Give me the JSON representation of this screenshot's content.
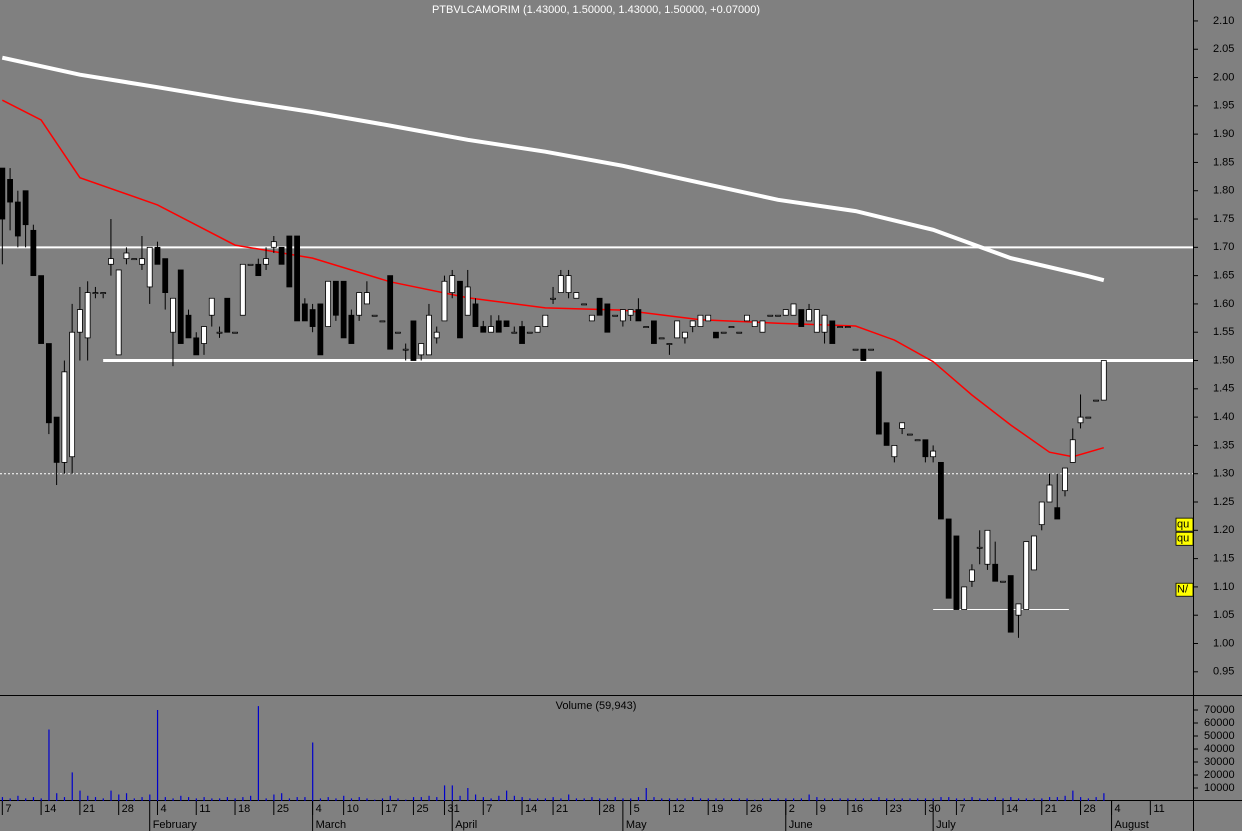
{
  "chart_data": [
    {
      "type": "candlestick",
      "title": "PTBVLCAMORIM (1.43000, 1.50000, 1.43000, 1.50000, +0.07000)",
      "up_color": "#ffffff",
      "down_color": "#000000",
      "open": [
        1.84,
        1.82,
        1.78,
        1.8,
        1.73,
        1.65,
        1.53,
        1.4,
        1.32,
        1.33,
        1.55,
        1.54,
        1.62,
        1.62,
        1.67,
        1.51,
        1.68,
        1.68,
        1.67,
        1.63,
        1.7,
        1.68,
        1.55,
        1.66,
        1.58,
        1.54,
        1.53,
        1.58,
        1.55,
        1.61,
        1.55,
        1.58,
        1.67,
        1.67,
        1.67,
        1.7,
        1.7,
        1.72,
        1.72,
        1.6,
        1.59,
        1.6,
        1.56,
        1.64,
        1.64,
        1.58,
        1.58,
        1.6,
        1.58,
        1.57,
        1.65,
        1.55,
        1.52,
        1.57,
        1.51,
        1.51,
        1.54,
        1.57,
        1.62,
        1.64,
        1.58,
        1.6,
        1.56,
        1.55,
        1.57,
        1.57,
        1.55,
        1.56,
        1.55,
        1.55,
        1.56,
        1.61,
        1.62,
        1.62,
        1.61,
        1.6,
        1.57,
        1.61,
        1.6,
        1.58,
        1.57,
        1.58,
        1.59,
        1.56,
        1.57,
        1.54,
        1.53,
        1.54,
        1.54,
        1.56,
        1.56,
        1.57,
        1.55,
        1.55,
        1.56,
        1.55,
        1.57,
        1.56,
        1.55,
        1.58,
        1.58,
        1.58,
        1.58,
        1.59,
        1.57,
        1.55,
        1.55,
        1.57,
        1.56,
        1.56,
        1.52,
        1.52,
        1.52,
        1.48,
        1.39,
        1.33,
        1.38,
        1.37,
        1.36,
        1.36,
        1.33,
        1.32,
        1.22,
        1.19,
        1.06,
        1.11,
        1.17,
        1.14,
        1.14,
        1.11,
        1.12,
        1.05,
        1.06,
        1.13,
        1.21,
        1.25,
        1.24,
        1.27,
        1.32,
        1.39,
        1.4,
        1.43,
        1.43
      ],
      "high": [
        1.84,
        1.84,
        1.8,
        1.8,
        1.74,
        1.65,
        1.53,
        1.4,
        1.5,
        1.6,
        1.63,
        1.64,
        1.63,
        1.62,
        1.75,
        1.66,
        1.7,
        1.68,
        1.72,
        1.7,
        1.71,
        1.68,
        1.61,
        1.66,
        1.59,
        1.55,
        1.56,
        1.61,
        1.56,
        1.61,
        1.55,
        1.67,
        1.67,
        1.68,
        1.7,
        1.72,
        1.7,
        1.72,
        1.72,
        1.61,
        1.6,
        1.6,
        1.64,
        1.64,
        1.64,
        1.59,
        1.62,
        1.64,
        1.58,
        1.57,
        1.65,
        1.55,
        1.53,
        1.57,
        1.53,
        1.6,
        1.56,
        1.65,
        1.66,
        1.64,
        1.66,
        1.61,
        1.57,
        1.58,
        1.58,
        1.57,
        1.56,
        1.57,
        1.55,
        1.56,
        1.58,
        1.63,
        1.66,
        1.66,
        1.62,
        1.6,
        1.58,
        1.61,
        1.6,
        1.58,
        1.59,
        1.59,
        1.61,
        1.56,
        1.57,
        1.54,
        1.53,
        1.57,
        1.55,
        1.57,
        1.58,
        1.58,
        1.55,
        1.55,
        1.56,
        1.55,
        1.58,
        1.57,
        1.57,
        1.58,
        1.58,
        1.59,
        1.6,
        1.59,
        1.6,
        1.59,
        1.58,
        1.57,
        1.56,
        1.56,
        1.52,
        1.52,
        1.52,
        1.48,
        1.39,
        1.35,
        1.39,
        1.37,
        1.36,
        1.36,
        1.35,
        1.32,
        1.22,
        1.19,
        1.1,
        1.14,
        1.2,
        1.2,
        1.18,
        1.11,
        1.12,
        1.07,
        1.18,
        1.19,
        1.25,
        1.3,
        1.3,
        1.31,
        1.38,
        1.44,
        1.4,
        1.43,
        1.5
      ],
      "low": [
        1.67,
        1.73,
        1.7,
        1.7,
        1.65,
        1.53,
        1.37,
        1.28,
        1.3,
        1.3,
        1.5,
        1.5,
        1.61,
        1.61,
        1.65,
        1.51,
        1.67,
        1.68,
        1.66,
        1.6,
        1.67,
        1.59,
        1.49,
        1.53,
        1.54,
        1.51,
        1.51,
        1.56,
        1.54,
        1.55,
        1.55,
        1.58,
        1.67,
        1.65,
        1.66,
        1.69,
        1.67,
        1.63,
        1.57,
        1.57,
        1.55,
        1.51,
        1.56,
        1.57,
        1.54,
        1.53,
        1.57,
        1.6,
        1.58,
        1.57,
        1.52,
        1.55,
        1.5,
        1.5,
        1.5,
        1.51,
        1.53,
        1.57,
        1.61,
        1.54,
        1.58,
        1.56,
        1.55,
        1.55,
        1.55,
        1.56,
        1.55,
        1.53,
        1.55,
        1.55,
        1.56,
        1.6,
        1.62,
        1.61,
        1.61,
        1.6,
        1.57,
        1.58,
        1.55,
        1.58,
        1.56,
        1.57,
        1.57,
        1.56,
        1.53,
        1.54,
        1.51,
        1.54,
        1.53,
        1.55,
        1.56,
        1.57,
        1.54,
        1.55,
        1.56,
        1.55,
        1.57,
        1.56,
        1.55,
        1.58,
        1.58,
        1.58,
        1.58,
        1.56,
        1.57,
        1.55,
        1.53,
        1.53,
        1.56,
        1.56,
        1.52,
        1.5,
        1.52,
        1.37,
        1.35,
        1.32,
        1.37,
        1.37,
        1.36,
        1.32,
        1.32,
        1.22,
        1.08,
        1.06,
        1.06,
        1.1,
        1.14,
        1.13,
        1.11,
        1.11,
        1.02,
        1.01,
        1.06,
        1.13,
        1.2,
        1.25,
        1.22,
        1.26,
        1.32,
        1.38,
        1.4,
        1.43,
        1.43
      ],
      "close": [
        1.75,
        1.78,
        1.72,
        1.74,
        1.65,
        1.53,
        1.39,
        1.32,
        1.48,
        1.55,
        1.59,
        1.62,
        1.62,
        1.62,
        1.68,
        1.66,
        1.69,
        1.68,
        1.68,
        1.7,
        1.67,
        1.62,
        1.61,
        1.53,
        1.54,
        1.51,
        1.56,
        1.61,
        1.55,
        1.55,
        1.55,
        1.67,
        1.67,
        1.65,
        1.68,
        1.71,
        1.67,
        1.63,
        1.57,
        1.57,
        1.56,
        1.51,
        1.64,
        1.58,
        1.54,
        1.53,
        1.62,
        1.62,
        1.58,
        1.57,
        1.52,
        1.55,
        1.52,
        1.5,
        1.53,
        1.58,
        1.55,
        1.64,
        1.65,
        1.54,
        1.63,
        1.56,
        1.55,
        1.56,
        1.55,
        1.56,
        1.55,
        1.53,
        1.55,
        1.56,
        1.58,
        1.61,
        1.65,
        1.65,
        1.62,
        1.6,
        1.58,
        1.58,
        1.55,
        1.58,
        1.59,
        1.59,
        1.57,
        1.56,
        1.53,
        1.54,
        1.53,
        1.57,
        1.55,
        1.57,
        1.58,
        1.58,
        1.54,
        1.55,
        1.56,
        1.55,
        1.58,
        1.57,
        1.57,
        1.58,
        1.58,
        1.59,
        1.6,
        1.56,
        1.59,
        1.59,
        1.58,
        1.53,
        1.56,
        1.56,
        1.52,
        1.5,
        1.52,
        1.37,
        1.35,
        1.35,
        1.39,
        1.37,
        1.36,
        1.33,
        1.34,
        1.22,
        1.08,
        1.06,
        1.1,
        1.13,
        1.17,
        1.2,
        1.11,
        1.11,
        1.02,
        1.07,
        1.18,
        1.19,
        1.25,
        1.28,
        1.22,
        1.31,
        1.36,
        1.4,
        1.4,
        1.43,
        1.5
      ],
      "overlays": [
        {
          "color": "#ffffff",
          "x": [
            0,
            10,
            20,
            30,
            40,
            50,
            60,
            70,
            80,
            90,
            100,
            110,
            120,
            130,
            140,
            142
          ],
          "values": [
            2.035,
            2.005,
            1.983,
            1.96,
            1.939,
            1.915,
            1.89,
            1.869,
            1.844,
            1.814,
            1.784,
            1.764,
            1.731,
            1.681,
            1.649,
            1.642
          ]
        },
        {
          "color": "#ff0000",
          "x": [
            0,
            5,
            10,
            20,
            30,
            40,
            50,
            60,
            70,
            80,
            90,
            100,
            110,
            115,
            120,
            125,
            130,
            135,
            138,
            142
          ],
          "values": [
            1.96,
            1.925,
            1.823,
            1.775,
            1.704,
            1.681,
            1.639,
            1.611,
            1.593,
            1.589,
            1.572,
            1.566,
            1.561,
            1.536,
            1.498,
            1.439,
            1.386,
            1.338,
            1.33,
            1.346
          ]
        }
      ],
      "hlines": [
        {
          "value": 1.7,
          "color": "#ffffff"
        },
        {
          "value": 1.5,
          "color": "#ffffff",
          "x": [
            13,
            153.5
          ]
        },
        {
          "value": 1.3,
          "color": "#ffffff",
          "style": "dotted"
        },
        {
          "value": 1.06,
          "color": "#ffffff",
          "x": [
            120,
            137.5
          ]
        }
      ],
      "side_labels": [
        {
          "value": 1.21,
          "label": "qu",
          "color": "#ffff00"
        },
        {
          "value": 1.185,
          "label": "qu",
          "color": "#ffff00"
        },
        {
          "value": 1.095,
          "label": "N/",
          "color": "#ffff00"
        }
      ],
      "xlim": [
        -0.3,
        153.5
      ],
      "xticks": [
        {
          "value": 0,
          "label": "7"
        },
        {
          "value": 5,
          "label": "14"
        },
        {
          "value": 10,
          "label": "21"
        },
        {
          "value": 15,
          "label": "28"
        },
        {
          "value": 20,
          "label": "4"
        },
        {
          "value": 25,
          "label": "11"
        },
        {
          "value": 30,
          "label": "18"
        },
        {
          "value": 35,
          "label": "25"
        },
        {
          "value": 40,
          "label": "4"
        },
        {
          "value": 44,
          "label": "10"
        },
        {
          "value": 49,
          "label": "17"
        },
        {
          "value": 53,
          "label": "25"
        },
        {
          "value": 57,
          "label": "31"
        },
        {
          "value": 62,
          "label": "7"
        },
        {
          "value": 67,
          "label": "14"
        },
        {
          "value": 71,
          "label": "21"
        },
        {
          "value": 77,
          "label": "28"
        },
        {
          "value": 81,
          "label": "5"
        },
        {
          "value": 86,
          "label": "12"
        },
        {
          "value": 91,
          "label": "19"
        },
        {
          "value": 96,
          "label": "26"
        },
        {
          "value": 101,
          "label": "2"
        },
        {
          "value": 105,
          "label": "9"
        },
        {
          "value": 109,
          "label": "16"
        },
        {
          "value": 114,
          "label": "23"
        },
        {
          "value": 119,
          "label": "30"
        },
        {
          "value": 123,
          "label": "7"
        },
        {
          "value": 129,
          "label": "14"
        },
        {
          "value": 134,
          "label": "21"
        },
        {
          "value": 139,
          "label": "28"
        },
        {
          "value": 143,
          "label": "4"
        },
        {
          "value": 148,
          "label": "11"
        }
      ],
      "month_ticks": [
        {
          "value": 19,
          "label": "February"
        },
        {
          "value": 40,
          "label": "March"
        },
        {
          "value": 58,
          "label": "April"
        },
        {
          "value": 80,
          "label": "May"
        },
        {
          "value": 101,
          "label": "June"
        },
        {
          "value": 120,
          "label": "July"
        },
        {
          "value": 143,
          "label": "August"
        }
      ],
      "ylim": [
        0.909,
        2.137
      ],
      "yticks": [
        {
          "value": 0.95,
          "label": "0.95"
        },
        {
          "value": 1.0,
          "label": "1.00"
        },
        {
          "value": 1.05,
          "label": "1.05"
        },
        {
          "value": 1.1,
          "label": "1.10"
        },
        {
          "value": 1.15,
          "label": "1.15"
        },
        {
          "value": 1.2,
          "label": "1.20"
        },
        {
          "value": 1.25,
          "label": "1.25"
        },
        {
          "value": 1.3,
          "label": "1.30"
        },
        {
          "value": 1.35,
          "label": "1.35"
        },
        {
          "value": 1.4,
          "label": "1.40"
        },
        {
          "value": 1.45,
          "label": "1.45"
        },
        {
          "value": 1.5,
          "label": "1.50"
        },
        {
          "value": 1.55,
          "label": "1.55"
        },
        {
          "value": 1.6,
          "label": "1.60"
        },
        {
          "value": 1.65,
          "label": "1.65"
        },
        {
          "value": 1.7,
          "label": "1.70"
        },
        {
          "value": 1.75,
          "label": "1.75"
        },
        {
          "value": 1.8,
          "label": "1.80"
        },
        {
          "value": 1.85,
          "label": "1.85"
        },
        {
          "value": 1.9,
          "label": "1.90"
        },
        {
          "value": 1.95,
          "label": "1.95"
        },
        {
          "value": 2.0,
          "label": "2.00"
        },
        {
          "value": 2.05,
          "label": "2.05"
        },
        {
          "value": 2.1,
          "label": "2.10"
        }
      ]
    },
    {
      "type": "bar",
      "title": "Volume (59,943)",
      "color": "#0000cc",
      "values": [
        3000,
        2000,
        4000,
        2000,
        3000,
        2000,
        55000,
        6000,
        3000,
        22000,
        8000,
        4000,
        3000,
        2000,
        8000,
        5000,
        6000,
        2000,
        3000,
        5000,
        70000,
        3000,
        2000,
        4000,
        3000,
        2000,
        3000,
        2000,
        2000,
        3000,
        2000,
        3000,
        4000,
        73000,
        2000,
        5000,
        6000,
        2000,
        3000,
        3000,
        45000,
        2000,
        3000,
        2000,
        4000,
        2000,
        3000,
        2000,
        1000,
        2000,
        4000,
        2000,
        1000,
        3000,
        3000,
        4000,
        3000,
        12000,
        12000,
        4000,
        10000,
        5000,
        3000,
        2000,
        4000,
        8000,
        4000,
        3000,
        2000,
        2000,
        2000,
        3000,
        2000,
        5000,
        2000,
        2000,
        3000,
        2000,
        2000,
        3000,
        2000,
        2000,
        3000,
        10000,
        3000,
        2000,
        2000,
        2000,
        2000,
        3000,
        2000,
        2000,
        2000,
        2000,
        2000,
        2000,
        2000,
        1000,
        2000,
        2000,
        2000,
        2000,
        2000,
        2000,
        5000,
        3000,
        2000,
        2000,
        2000,
        2000,
        2000,
        2000,
        2000,
        3000,
        2000,
        2000,
        2000,
        2000,
        2000,
        2000,
        2000,
        3000,
        3000,
        2000,
        2000,
        3000,
        2000,
        2000,
        3000,
        2000,
        3000,
        2000,
        2000,
        2000,
        2000,
        3000,
        3000,
        4000,
        8000,
        3000,
        2000,
        3000,
        6000
      ],
      "ylim": [
        0,
        80000
      ],
      "yticks": [
        10000,
        20000,
        30000,
        40000,
        50000,
        60000,
        70000
      ]
    }
  ]
}
